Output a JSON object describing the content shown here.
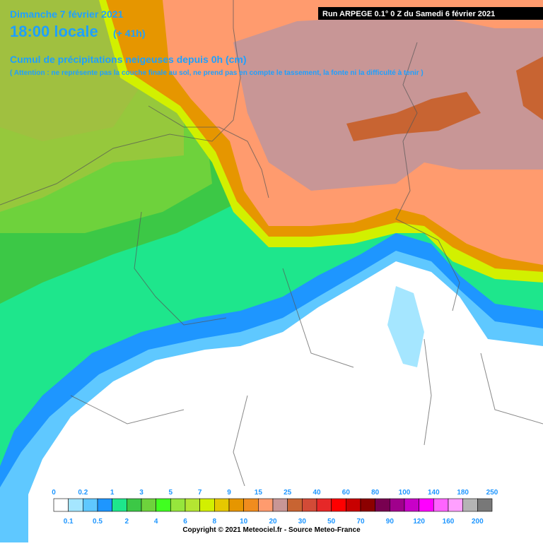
{
  "header": {
    "date": "Dimanche 7 février 2021",
    "time": "18:00 locale",
    "lead": "(+ 41h)",
    "run": "Run ARPEGE 0.1° 0 Z du Samedi 6 février 2021",
    "title": "Cumul de précipitations neigeuses depuis 0h (cm)",
    "note": "( Attention : ne représente pas la couche finale au sol, ne prend pas en compte le tassement, la fonte ni la difficulté à tenir )"
  },
  "legend": {
    "labels": [
      0,
      0.1,
      0.2,
      0.5,
      1,
      2,
      3,
      4,
      5,
      6,
      7,
      8,
      9,
      10,
      15,
      20,
      25,
      30,
      40,
      50,
      60,
      70,
      80,
      90,
      100,
      120,
      140,
      160,
      180,
      200,
      250
    ],
    "colors": [
      "#ffffff",
      "#a5e6ff",
      "#5fc8ff",
      "#1e96ff",
      "#1ee68c",
      "#3cc846",
      "#6ed23c",
      "#40ff20",
      "#96e63c",
      "#b4e632",
      "#d2f000",
      "#e6c800",
      "#e69600",
      "#f08c1e",
      "#ff9b6e",
      "#c89696",
      "#c86432",
      "#d24b37",
      "#e62828",
      "#ff0000",
      "#c80000",
      "#8c0000",
      "#780050",
      "#a0008c",
      "#c800c8",
      "#ff00ff",
      "#ff64ff",
      "#ffa0ff",
      "#b4b4b4",
      "#787878"
    ]
  },
  "footer": {
    "copyright": "Copyright © 2021 Meteociel.fr - Source Meteo-France"
  }
}
